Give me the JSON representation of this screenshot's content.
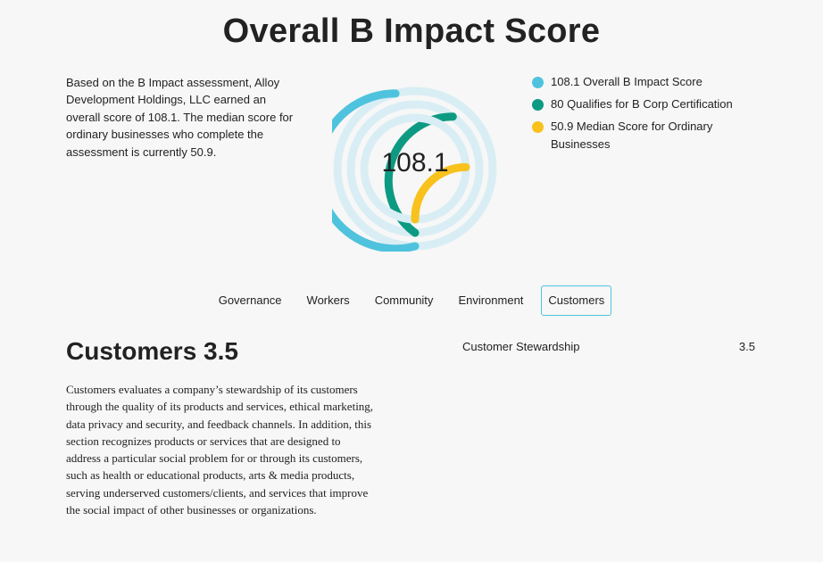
{
  "page": {
    "title": "Overall B Impact Score",
    "intro": "Based on the B Impact assessment, Alloy Development Holdings, LLC earned an overall score of 108.1. The median score for ordinary businesses who complete the assessment is currently 50.9."
  },
  "gauge": {
    "center_label": "108.1",
    "max_score": 200,
    "rings": [
      {
        "name": "Overall B Impact Score",
        "value": 108.1,
        "color": "#4fc3de"
      },
      {
        "name": "Qualifies for B Corp Certification",
        "value": 80,
        "color": "#0c9b82"
      },
      {
        "name": "Median Score for Ordinary Businesses",
        "value": 50.9,
        "color": "#f8c11c"
      }
    ],
    "track_color": "#d9eef4"
  },
  "legend": {
    "items": [
      {
        "label": "108.1 Overall B Impact Score",
        "color": "#4fc3de"
      },
      {
        "label": "80 Qualifies for B Corp Certification",
        "color": "#0c9b82"
      },
      {
        "label": "50.9 Median Score for Ordinary Businesses",
        "color": "#f8c11c"
      }
    ]
  },
  "tabs": {
    "items": [
      {
        "label": "Governance",
        "active": false
      },
      {
        "label": "Workers",
        "active": false
      },
      {
        "label": "Community",
        "active": false
      },
      {
        "label": "Environment",
        "active": false
      },
      {
        "label": "Customers",
        "active": true
      }
    ]
  },
  "section": {
    "title": "Customers 3.5",
    "description": "Customers evaluates a company’s stewardship of its customers through the quality of its products and services, ethical marketing, data privacy and security, and feedback channels. In addition, this section recognizes products or services that are designed to address a particular social problem for or through its customers, such as health or educational products, arts & media products, serving underserved customers/clients, and services that improve the social impact of other businesses or organizations."
  },
  "subscores": {
    "rows": [
      {
        "label": "Customer Stewardship",
        "value": "3.5"
      }
    ]
  }
}
